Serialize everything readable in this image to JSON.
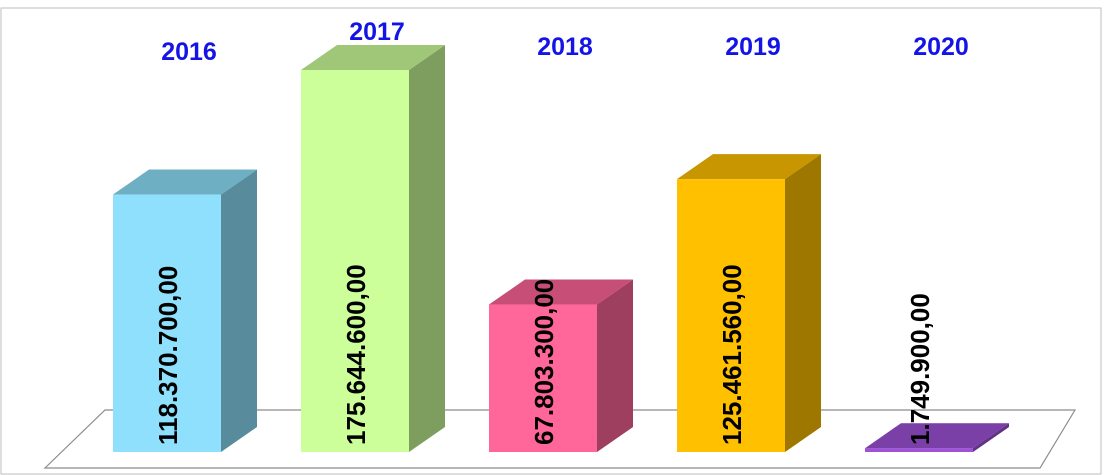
{
  "chart_data": {
    "type": "bar3d",
    "categories": [
      "2016",
      "2017",
      "2018",
      "2019",
      "2020"
    ],
    "values": [
      118370700,
      175644600,
      67803300,
      125461560,
      1749900
    ],
    "value_labels": [
      "118.370.700,00",
      "175.644.600,00",
      "67.803.300,00",
      "125.461.560,00",
      "1.749.900,00"
    ],
    "colors": [
      "#8ee0fc",
      "#ccff99",
      "#ff6699",
      "#ffc000",
      "#9e52d6"
    ]
  }
}
